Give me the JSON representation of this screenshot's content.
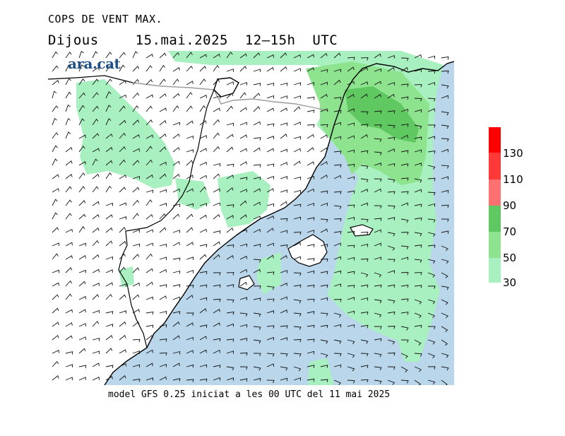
{
  "map": {
    "title": "COPS DE VENT MAX.",
    "day": "Dijous",
    "datetime": "15.mai.2025  12–15h  UTC",
    "logo_text": "ara.cat",
    "footer": "model GFS 0.25 iniciat a les 00 UTC del 11 mai 2025",
    "colors": {
      "sea": "#b9d6ea",
      "land": "#ffffff",
      "band_30_50": "#a8f0c0",
      "band_50_70": "#8ee38e",
      "band_70_90": "#60c860",
      "band_90_110": "#ff7070",
      "band_110_130": "#ff3838",
      "band_130_plus": "#ff0000",
      "borders": "#000000",
      "border_fr_es": "#9a9a9a",
      "logo": "#1e4f86"
    }
  },
  "legend": {
    "labels": [
      "30",
      "50",
      "70",
      "90",
      "110",
      "130"
    ],
    "bands": [
      {
        "min": 30,
        "max": 50,
        "color": "#a8f0c0"
      },
      {
        "min": 50,
        "max": 70,
        "color": "#8ee38e"
      },
      {
        "min": 70,
        "max": 90,
        "color": "#60c860"
      },
      {
        "min": 90,
        "max": 110,
        "color": "#ff7070"
      },
      {
        "min": 110,
        "max": 130,
        "color": "#ff3838"
      },
      {
        "min": 130,
        "max": 150,
        "color": "#ff0000"
      }
    ]
  }
}
